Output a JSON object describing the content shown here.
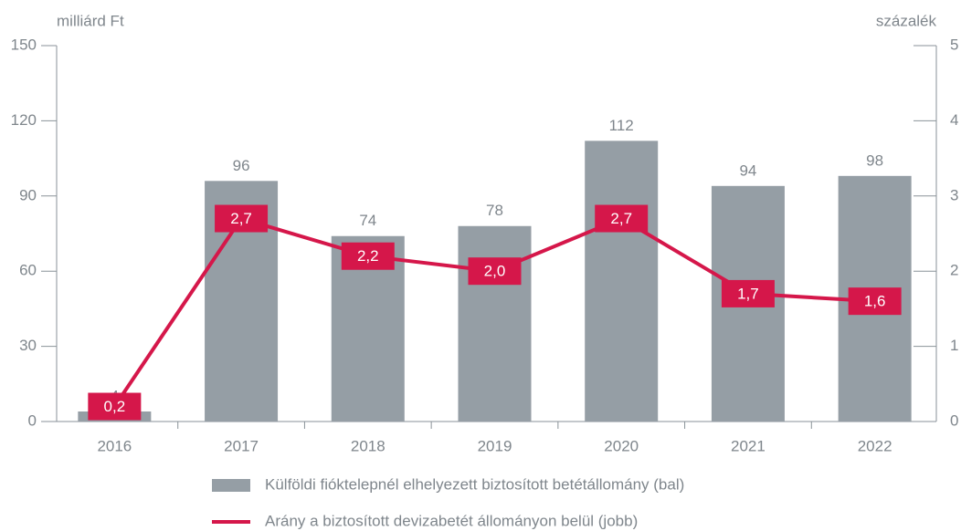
{
  "chart_data": {
    "type": "bar",
    "y_label": "milliárd Ft",
    "y2_label": "százalék",
    "categories": [
      "2016",
      "2017",
      "2018",
      "2019",
      "2020",
      "2021",
      "2022"
    ],
    "series": [
      {
        "name": "Külföldi fióktelepnél elhelyezett biztosított betétállomány (bal)",
        "type": "bar",
        "color": "#959ea5",
        "values": [
          4,
          96,
          74,
          78,
          112,
          94,
          98
        ]
      },
      {
        "name": "Arány a biztosított devizabetét állományon belül (jobb)",
        "type": "line",
        "axis": "y2",
        "color": "#d5174a",
        "values": [
          0.2,
          2.7,
          2.2,
          2.0,
          2.7,
          1.7,
          1.6
        ],
        "value_labels": [
          "0,2",
          "2,7",
          "2,2",
          "2,0",
          "2,7",
          "1,7",
          "1,6"
        ]
      }
    ],
    "ylim": [
      0,
      150
    ],
    "yticks": [
      0,
      30,
      60,
      90,
      120,
      150
    ],
    "y2lim": [
      0,
      5
    ],
    "y2ticks": [
      0,
      1,
      2,
      3,
      4,
      5
    ],
    "grid": false
  }
}
